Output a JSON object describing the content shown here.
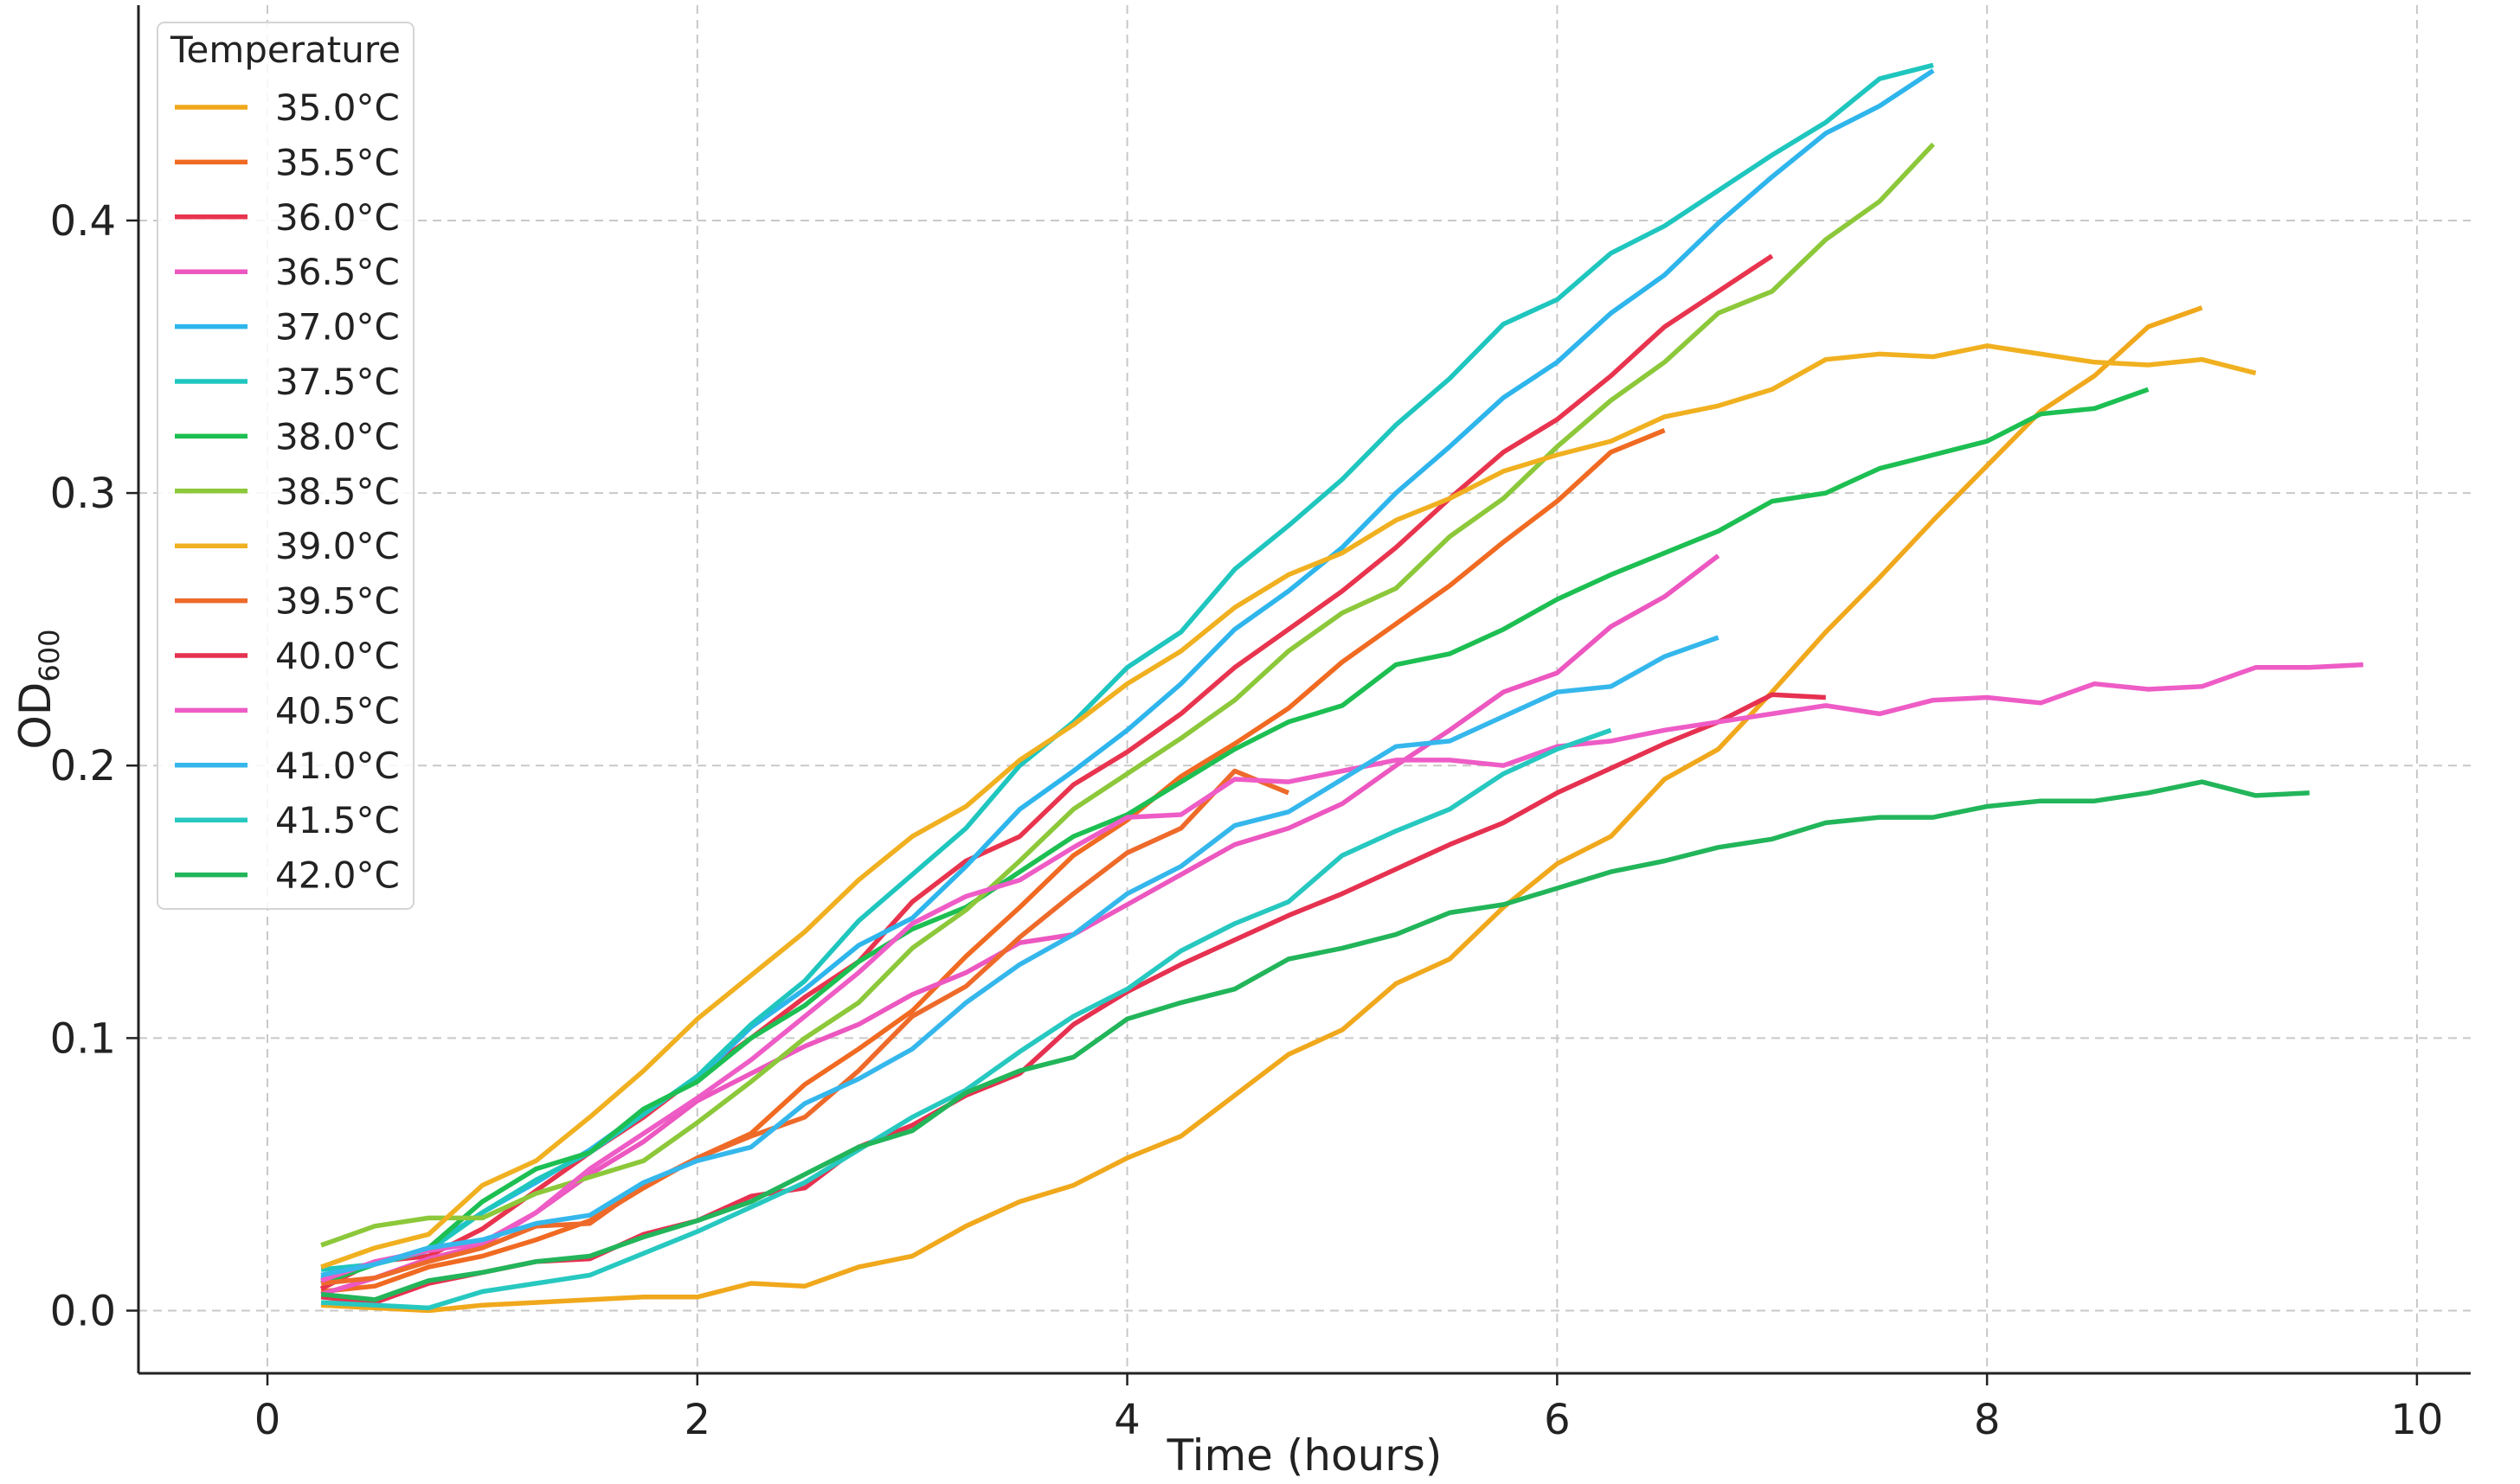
{
  "chart_data": {
    "type": "line",
    "title": "",
    "xlabel": "Time (hours)",
    "ylabel_main": "OD",
    "ylabel_sub": "600",
    "xlim": [
      -0.6,
      10.25
    ],
    "ylim": [
      -0.023,
      0.479
    ],
    "xticks": [
      0,
      2,
      4,
      6,
      8,
      10
    ],
    "xtick_labels": [
      "0",
      "2",
      "4",
      "6",
      "8",
      "10"
    ],
    "yticks": [
      0.0,
      0.1,
      0.2,
      0.3,
      0.4
    ],
    "ytick_labels": [
      "0.0",
      "0.1",
      "0.2",
      "0.3",
      "0.4"
    ],
    "grid": true,
    "legend": {
      "title": "Temperature",
      "position": "top-left"
    },
    "series": [
      {
        "name": "35.0°C",
        "color": "#F0A81C",
        "x": [
          0.25,
          0.5,
          0.75,
          1.0,
          1.25,
          1.5,
          1.75,
          2.0,
          2.25,
          2.5,
          2.75,
          3.0,
          3.25,
          3.5,
          3.75,
          4.0,
          4.25,
          4.5,
          4.75,
          5.0,
          5.25,
          5.5,
          5.75,
          6.0,
          6.25,
          6.5,
          6.75,
          7.0,
          7.25,
          7.5,
          7.75,
          8.0,
          8.25,
          8.5,
          8.75,
          9.0
        ],
        "y": [
          0.002,
          0.001,
          0.0,
          0.002,
          0.003,
          0.004,
          0.005,
          0.005,
          0.01,
          0.009,
          0.016,
          0.02,
          0.031,
          0.04,
          0.046,
          0.056,
          0.064,
          0.079,
          0.094,
          0.103,
          0.12,
          0.129,
          0.148,
          0.164,
          0.174,
          0.195,
          0.206,
          0.227,
          0.249,
          0.269,
          0.29,
          0.31,
          0.33,
          0.343,
          0.361,
          0.368
        ]
      },
      {
        "name": "35.5°C",
        "color": "#F06A22",
        "x": [
          0.25,
          0.5,
          0.75,
          1.0,
          1.25,
          1.5,
          1.75,
          2.0,
          2.25,
          2.5,
          2.75,
          3.0,
          3.25,
          3.5,
          3.75,
          4.0,
          4.25,
          4.5,
          4.75,
          5.0,
          5.25,
          5.5,
          5.75,
          6.0,
          6.25,
          6.5
        ],
        "y": [
          0.007,
          0.009,
          0.016,
          0.02,
          0.026,
          0.033,
          0.045,
          0.056,
          0.065,
          0.083,
          0.096,
          0.11,
          0.13,
          0.148,
          0.167,
          0.18,
          0.196,
          0.208,
          0.221,
          0.238,
          0.252,
          0.266,
          0.282,
          0.297,
          0.315,
          0.323
        ]
      },
      {
        "name": "36.0°C",
        "color": "#E8344E",
        "x": [
          0.25,
          0.5,
          0.75,
          1.0,
          1.25,
          1.5,
          1.75,
          2.0,
          2.25,
          2.5,
          2.75,
          3.0,
          3.25,
          3.5,
          3.75,
          4.0,
          4.25,
          4.5,
          4.75,
          5.0,
          5.25,
          5.5,
          5.75,
          6.0,
          6.25,
          6.5,
          6.75,
          7.0
        ],
        "y": [
          0.008,
          0.018,
          0.02,
          0.03,
          0.044,
          0.058,
          0.071,
          0.086,
          0.1,
          0.115,
          0.128,
          0.15,
          0.165,
          0.174,
          0.193,
          0.205,
          0.219,
          0.236,
          0.25,
          0.264,
          0.28,
          0.298,
          0.315,
          0.327,
          0.343,
          0.361,
          0.374,
          0.387
        ]
      },
      {
        "name": "36.5°C",
        "color": "#EC57C0",
        "x": [
          0.25,
          0.5,
          0.75,
          1.0,
          1.25,
          1.5,
          1.75,
          2.0,
          2.25,
          2.5,
          2.75,
          3.0,
          3.25,
          3.5,
          3.75,
          4.0,
          4.25,
          4.5,
          4.75,
          5.0,
          5.25,
          5.5,
          5.75,
          6.0,
          6.25,
          6.5,
          6.75
        ],
        "y": [
          0.006,
          0.012,
          0.019,
          0.024,
          0.036,
          0.05,
          0.062,
          0.077,
          0.087,
          0.097,
          0.105,
          0.116,
          0.124,
          0.135,
          0.138,
          0.149,
          0.16,
          0.171,
          0.177,
          0.186,
          0.2,
          0.213,
          0.227,
          0.234,
          0.251,
          0.262,
          0.277
        ]
      },
      {
        "name": "37.0°C",
        "color": "#2EB5EC",
        "x": [
          0.25,
          0.5,
          0.75,
          1.0,
          1.25,
          1.5,
          1.75,
          2.0,
          2.25,
          2.5,
          2.75,
          3.0,
          3.25,
          3.5,
          3.75,
          4.0,
          4.25,
          4.5,
          4.75,
          5.0,
          5.25,
          5.5,
          5.75,
          6.0,
          6.25,
          6.5,
          6.75,
          7.0,
          7.25,
          7.5,
          7.75
        ],
        "y": [
          0.012,
          0.017,
          0.023,
          0.036,
          0.047,
          0.059,
          0.073,
          0.085,
          0.104,
          0.118,
          0.134,
          0.144,
          0.163,
          0.184,
          0.198,
          0.213,
          0.23,
          0.25,
          0.264,
          0.28,
          0.3,
          0.317,
          0.335,
          0.348,
          0.366,
          0.38,
          0.399,
          0.416,
          0.432,
          0.442,
          0.455
        ]
      },
      {
        "name": "37.5°C",
        "color": "#1FC6BE",
        "x": [
          0.25,
          0.5,
          0.75,
          1.0,
          1.25,
          1.5,
          1.75,
          2.0,
          2.25,
          2.5,
          2.75,
          3.0,
          3.25,
          3.5,
          3.75,
          4.0,
          4.25,
          4.5,
          4.75,
          5.0,
          5.25,
          5.5,
          5.75,
          6.0,
          6.25,
          6.5,
          6.75,
          7.0,
          7.25,
          7.5,
          7.75
        ],
        "y": [
          0.015,
          0.017,
          0.022,
          0.036,
          0.048,
          0.058,
          0.072,
          0.086,
          0.105,
          0.121,
          0.143,
          0.16,
          0.177,
          0.2,
          0.216,
          0.236,
          0.249,
          0.272,
          0.288,
          0.305,
          0.325,
          0.342,
          0.362,
          0.371,
          0.388,
          0.398,
          0.411,
          0.424,
          0.436,
          0.452,
          0.457
        ]
      },
      {
        "name": "38.0°C",
        "color": "#1DBF52",
        "x": [
          0.25,
          0.5,
          0.75,
          1.0,
          1.25,
          1.5,
          1.75,
          2.0,
          2.25,
          2.5,
          2.75,
          3.0,
          3.25,
          3.5,
          3.75,
          4.0,
          4.25,
          4.5,
          4.75,
          5.0,
          5.25,
          5.5,
          5.75,
          6.0,
          6.25,
          6.5,
          6.75,
          7.0,
          7.25,
          7.5,
          7.75,
          8.0,
          8.25,
          8.5,
          8.75
        ],
        "y": [
          0.01,
          0.017,
          0.023,
          0.04,
          0.052,
          0.058,
          0.074,
          0.084,
          0.1,
          0.112,
          0.128,
          0.14,
          0.148,
          0.161,
          0.174,
          0.182,
          0.194,
          0.206,
          0.216,
          0.222,
          0.237,
          0.241,
          0.25,
          0.261,
          0.27,
          0.278,
          0.286,
          0.297,
          0.3,
          0.309,
          0.314,
          0.319,
          0.329,
          0.331,
          0.338
        ]
      },
      {
        "name": "38.5°C",
        "color": "#8CC83A",
        "x": [
          0.25,
          0.5,
          0.75,
          1.0,
          1.25,
          1.5,
          1.75,
          2.0,
          2.25,
          2.5,
          2.75,
          3.0,
          3.25,
          3.5,
          3.75,
          4.0,
          4.25,
          4.5,
          4.75,
          5.0,
          5.25,
          5.5,
          5.75,
          6.0,
          6.25,
          6.5,
          6.75,
          7.0,
          7.25,
          7.5,
          7.75
        ],
        "y": [
          0.024,
          0.031,
          0.034,
          0.034,
          0.043,
          0.049,
          0.055,
          0.069,
          0.084,
          0.1,
          0.113,
          0.133,
          0.147,
          0.165,
          0.184,
          0.197,
          0.21,
          0.224,
          0.242,
          0.256,
          0.265,
          0.284,
          0.298,
          0.317,
          0.334,
          0.348,
          0.366,
          0.374,
          0.393,
          0.407,
          0.428
        ]
      },
      {
        "name": "39.0°C",
        "color": "#F0B020",
        "x": [
          0.25,
          0.5,
          0.75,
          1.0,
          1.25,
          1.5,
          1.75,
          2.0,
          2.25,
          2.5,
          2.75,
          3.0,
          3.25,
          3.5,
          3.75,
          4.0,
          4.25,
          4.5,
          4.75,
          5.0,
          5.25,
          5.5,
          5.75,
          6.0,
          6.25,
          6.5,
          6.75,
          7.0,
          7.25,
          7.5,
          7.75,
          8.0,
          8.25,
          8.5,
          8.75,
          9.0,
          9.25
        ],
        "y": [
          0.016,
          0.023,
          0.028,
          0.046,
          0.055,
          0.071,
          0.088,
          0.107,
          0.123,
          0.139,
          0.158,
          0.174,
          0.185,
          0.202,
          0.215,
          0.23,
          0.242,
          0.258,
          0.27,
          0.278,
          0.29,
          0.298,
          0.308,
          0.314,
          0.319,
          0.328,
          0.332,
          0.338,
          0.349,
          0.351,
          0.35,
          0.354,
          0.351,
          0.348,
          0.347,
          0.349,
          0.344
        ]
      },
      {
        "name": "39.5°C",
        "color": "#EE6A2A",
        "x": [
          0.25,
          0.5,
          0.75,
          1.0,
          1.25,
          1.5,
          1.75,
          2.0,
          2.25,
          2.5,
          2.75,
          3.0,
          3.25,
          3.5,
          3.75,
          4.0,
          4.25,
          4.5,
          4.75
        ],
        "y": [
          0.01,
          0.012,
          0.018,
          0.023,
          0.031,
          0.032,
          0.046,
          0.056,
          0.064,
          0.071,
          0.088,
          0.108,
          0.119,
          0.137,
          0.153,
          0.168,
          0.177,
          0.198,
          0.19
        ]
      },
      {
        "name": "40.0°C",
        "color": "#E63150",
        "x": [
          0.25,
          0.5,
          0.75,
          1.0,
          1.25,
          1.5,
          1.75,
          2.0,
          2.25,
          2.5,
          2.75,
          3.0,
          3.25,
          3.5,
          3.75,
          4.0,
          4.25,
          4.5,
          4.75,
          5.0,
          5.25,
          5.5,
          5.75,
          6.0,
          6.25,
          6.5,
          6.75,
          7.0,
          7.25
        ],
        "y": [
          0.005,
          0.003,
          0.01,
          0.014,
          0.018,
          0.019,
          0.028,
          0.033,
          0.042,
          0.045,
          0.06,
          0.068,
          0.079,
          0.087,
          0.105,
          0.117,
          0.127,
          0.136,
          0.145,
          0.153,
          0.162,
          0.171,
          0.179,
          0.19,
          0.199,
          0.208,
          0.216,
          0.226,
          0.225
        ]
      },
      {
        "name": "40.5°C",
        "color": "#EE5CC6",
        "x": [
          0.25,
          0.5,
          0.75,
          1.0,
          1.25,
          1.5,
          1.75,
          2.0,
          2.25,
          2.5,
          2.75,
          3.0,
          3.25,
          3.5,
          3.75,
          4.0,
          4.25,
          4.5,
          4.75,
          5.0,
          5.25,
          5.5,
          5.75,
          6.0,
          6.25,
          6.5,
          6.75,
          7.0,
          7.25,
          7.5,
          7.75,
          8.0,
          8.25,
          8.5,
          8.75,
          9.0,
          9.25,
          9.5,
          9.75
        ],
        "y": [
          0.011,
          0.018,
          0.022,
          0.025,
          0.036,
          0.052,
          0.065,
          0.078,
          0.092,
          0.108,
          0.124,
          0.142,
          0.152,
          0.158,
          0.17,
          0.181,
          0.182,
          0.195,
          0.194,
          0.198,
          0.202,
          0.202,
          0.2,
          0.207,
          0.209,
          0.213,
          0.216,
          0.219,
          0.222,
          0.219,
          0.224,
          0.225,
          0.223,
          0.23,
          0.228,
          0.229,
          0.236,
          0.236,
          0.237
        ]
      },
      {
        "name": "41.0°C",
        "color": "#35B7EC",
        "x": [
          0.25,
          0.5,
          0.75,
          1.0,
          1.25,
          1.5,
          1.75,
          2.0,
          2.25,
          2.5,
          2.75,
          3.0,
          3.25,
          3.5,
          3.75,
          4.0,
          4.25,
          4.5,
          4.75,
          5.0,
          5.25,
          5.5,
          5.75,
          6.0,
          6.25,
          6.5,
          6.75
        ],
        "y": [
          0.013,
          0.017,
          0.023,
          0.026,
          0.032,
          0.035,
          0.047,
          0.055,
          0.06,
          0.076,
          0.085,
          0.096,
          0.113,
          0.127,
          0.138,
          0.153,
          0.163,
          0.178,
          0.183,
          0.195,
          0.207,
          0.209,
          0.218,
          0.227,
          0.229,
          0.24,
          0.247
        ]
      },
      {
        "name": "41.5°C",
        "color": "#27C8C0",
        "x": [
          0.25,
          0.5,
          0.75,
          1.0,
          1.25,
          1.5,
          1.75,
          2.0,
          2.25,
          2.5,
          2.75,
          3.0,
          3.25,
          3.5,
          3.75,
          4.0,
          4.25,
          4.5,
          4.75,
          5.0,
          5.25,
          5.5,
          5.75,
          6.0,
          6.25
        ],
        "y": [
          0.003,
          0.002,
          0.001,
          0.007,
          0.01,
          0.013,
          0.021,
          0.029,
          0.038,
          0.047,
          0.059,
          0.071,
          0.081,
          0.095,
          0.108,
          0.118,
          0.132,
          0.142,
          0.15,
          0.167,
          0.176,
          0.184,
          0.197,
          0.206,
          0.213
        ]
      },
      {
        "name": "42.0°C",
        "color": "#22B55A",
        "x": [
          0.25,
          0.5,
          0.75,
          1.0,
          1.25,
          1.5,
          1.75,
          2.0,
          2.25,
          2.5,
          2.75,
          3.0,
          3.25,
          3.5,
          3.75,
          4.0,
          4.25,
          4.5,
          4.75,
          5.0,
          5.25,
          5.5,
          5.75,
          6.0,
          6.25,
          6.5,
          6.75,
          7.0,
          7.25,
          7.5,
          7.75,
          8.0,
          8.25,
          8.5,
          8.75,
          9.0,
          9.25,
          9.5
        ],
        "y": [
          0.006,
          0.004,
          0.011,
          0.014,
          0.018,
          0.02,
          0.027,
          0.033,
          0.04,
          0.05,
          0.06,
          0.066,
          0.08,
          0.088,
          0.093,
          0.107,
          0.113,
          0.118,
          0.129,
          0.133,
          0.138,
          0.146,
          0.149,
          0.155,
          0.161,
          0.165,
          0.17,
          0.173,
          0.179,
          0.181,
          0.181,
          0.185,
          0.187,
          0.187,
          0.19,
          0.194,
          0.189,
          0.19
        ]
      }
    ]
  }
}
